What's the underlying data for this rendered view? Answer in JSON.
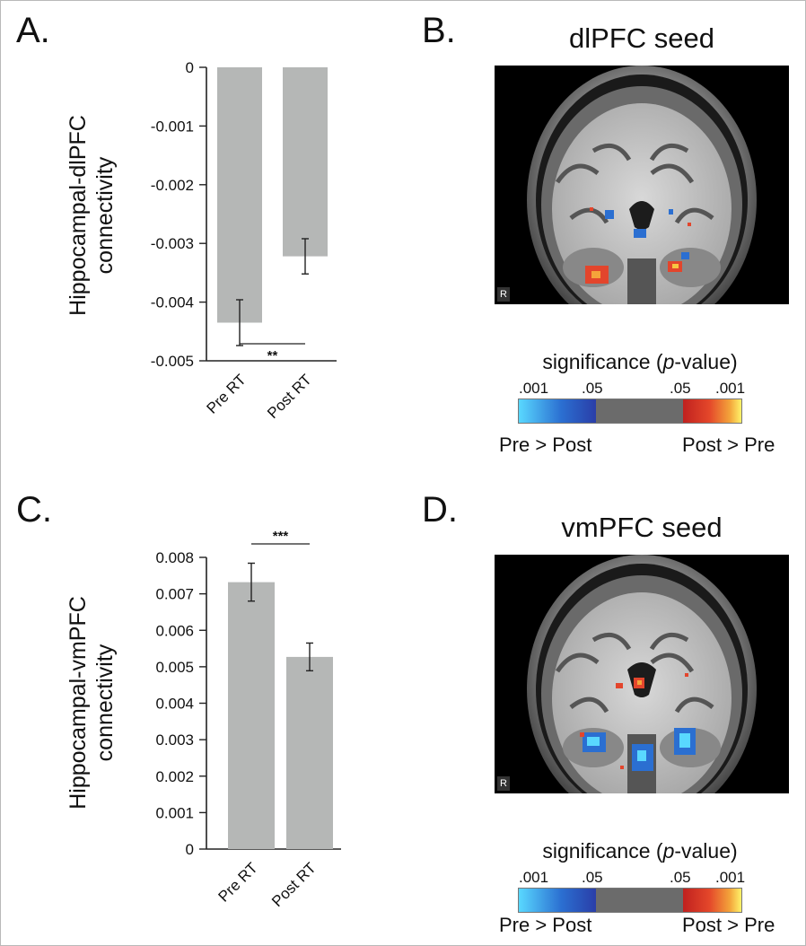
{
  "panels": {
    "a": {
      "letter": "A."
    },
    "b": {
      "letter": "B.",
      "title": "dlPFC seed"
    },
    "c": {
      "letter": "C."
    },
    "d": {
      "letter": "D.",
      "title": "vmPFC seed"
    }
  },
  "colorbar": {
    "title_prefix": "significance (",
    "title_p": "p",
    "title_suffix": "-value)",
    "ticks": [
      ".001",
      ".05",
      ".05",
      ".001"
    ],
    "left_label": "Pre > Post",
    "right_label": "Post > Pre",
    "colors": {
      "low": "#59d8ff",
      "blue": "#2b6fd1",
      "gray": "#6b6b6b",
      "red": "#d7301f",
      "yellow": "#fff36a"
    }
  },
  "brain_marker": "R",
  "chart_data": [
    {
      "type": "bar",
      "panel": "A",
      "categories": [
        "Pre RT",
        "Post RT"
      ],
      "values": [
        -0.00435,
        -0.00322
      ],
      "error": [
        0.00039,
        0.0003
      ],
      "ylabel_lines": [
        "Hippocampal-dlPFC",
        "connectivity"
      ],
      "yticks": [
        0,
        -0.001,
        -0.002,
        -0.003,
        -0.004,
        -0.005
      ],
      "ytick_labels": [
        "0",
        "-0.001",
        "-0.002",
        "-0.003",
        "-0.004",
        "-0.005"
      ],
      "ylim": [
        -0.005,
        0
      ],
      "significance": "**",
      "bar_color": "#b5b7b6"
    },
    {
      "type": "bar",
      "panel": "C",
      "categories": [
        "Pre RT",
        "Post RT"
      ],
      "values": [
        0.00732,
        0.00527
      ],
      "error": [
        0.00052,
        0.00038
      ],
      "ylabel_lines": [
        "Hippocampal-vmPFC",
        "connectivity"
      ],
      "yticks": [
        0,
        0.001,
        0.002,
        0.003,
        0.004,
        0.005,
        0.006,
        0.007,
        0.008
      ],
      "ytick_labels": [
        "0",
        "0.001",
        "0.002",
        "0.003",
        "0.004",
        "0.005",
        "0.006",
        "0.007",
        "0.008"
      ],
      "ylim": [
        0,
        0.008
      ],
      "significance": "***",
      "bar_color": "#b5b7b6"
    }
  ]
}
